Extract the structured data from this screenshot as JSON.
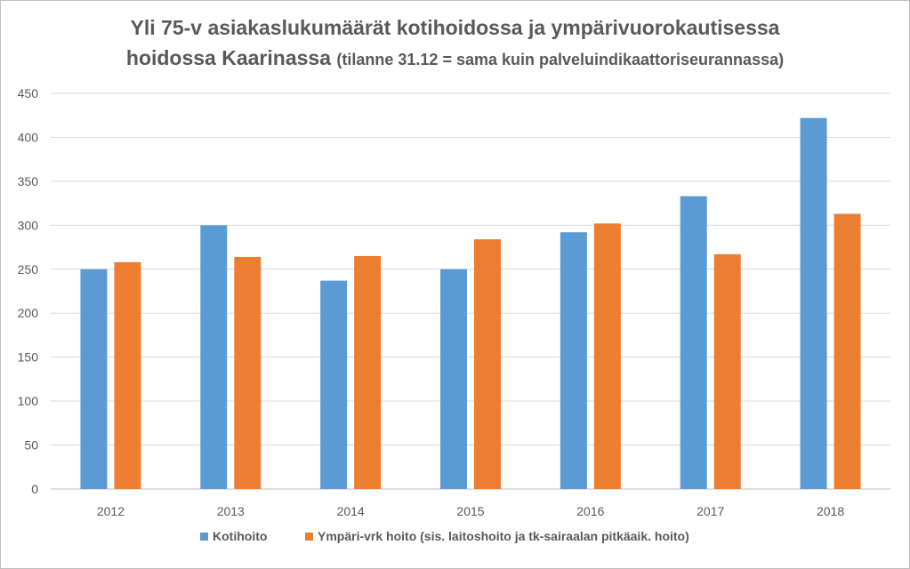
{
  "chart_data": {
    "type": "bar",
    "title_line1": "Yli 75-v asiakaslukumäärät kotihoidossa ja ympärivuorokautisessa",
    "title_line2": "hoidossa Kaarinassa",
    "title_suffix": "(tilanne 31.12 =  sama kuin palveluindikaattoriseurannassa)",
    "categories": [
      "2012",
      "2013",
      "2014",
      "2015",
      "2016",
      "2017",
      "2018"
    ],
    "series": [
      {
        "name": "Kotihoito",
        "color": "#5b9bd5",
        "values": [
          250,
          300,
          237,
          250,
          292,
          333,
          422
        ]
      },
      {
        "name": "Ympäri-vrk hoito (sis. laitoshoito ja tk-sairaalan pitkäaik. hoito)",
        "color": "#ed7d31",
        "values": [
          258,
          264,
          265,
          284,
          302,
          267,
          313
        ]
      }
    ],
    "ylim": [
      0,
      450
    ],
    "yticks": [
      0,
      50,
      100,
      150,
      200,
      250,
      300,
      350,
      400,
      450
    ],
    "grid": true,
    "legend": "bottom",
    "xlabel": "",
    "ylabel": ""
  }
}
